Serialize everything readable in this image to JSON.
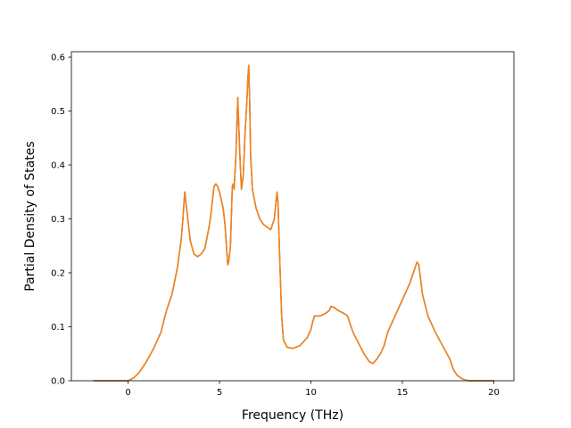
{
  "chart_data": {
    "type": "line",
    "title": "",
    "xlabel": "Frequency (THz)",
    "ylabel": "Partial Density of States",
    "xlim": [
      -3.1,
      21.1
    ],
    "ylim": [
      0.0,
      0.61
    ],
    "xticks": [
      0,
      5,
      10,
      15,
      20
    ],
    "xtick_labels": [
      "0",
      "5",
      "10",
      "15",
      "20"
    ],
    "yticks": [
      0.0,
      0.1,
      0.2,
      0.3,
      0.4,
      0.5,
      0.6
    ],
    "ytick_labels": [
      "0.0",
      "0.1",
      "0.2",
      "0.3",
      "0.4",
      "0.5",
      "0.6"
    ],
    "grid": false,
    "legend": "none",
    "series": [
      {
        "color": "#1f77b4",
        "x": [
          -1.9,
          0.0,
          0.3,
          0.6,
          1.0,
          1.4,
          1.8,
          2.1,
          2.4,
          2.7,
          2.9,
          3.0,
          3.1,
          3.2,
          3.4,
          3.6,
          3.8,
          4.0,
          4.2,
          4.4,
          4.5,
          4.6,
          4.7,
          4.8,
          4.9,
          5.0,
          5.2,
          5.3,
          5.4,
          5.45,
          5.5,
          5.6,
          5.7,
          5.75,
          5.8,
          5.9,
          6.0,
          6.1,
          6.2,
          6.3,
          6.4,
          6.5,
          6.55,
          6.6,
          6.65,
          6.7,
          6.8,
          7.0,
          7.2,
          7.4,
          7.6,
          7.8,
          8.0,
          8.1,
          8.15,
          8.2,
          8.3,
          8.4,
          8.5,
          8.7,
          9.0,
          9.4,
          9.8,
          10.0,
          10.1,
          10.2,
          10.5,
          10.8,
          11.0,
          11.1,
          11.3,
          11.5,
          11.8,
          12.0,
          12.1,
          12.3,
          12.6,
          12.9,
          13.2,
          13.4,
          13.6,
          13.8,
          14.0,
          14.2,
          14.6,
          15.0,
          15.4,
          15.7,
          15.8,
          15.9,
          16.1,
          16.4,
          16.8,
          17.2,
          17.6,
          17.8,
          18.0,
          18.3,
          18.6,
          20.0
        ],
        "y": [
          0.0,
          0.0,
          0.005,
          0.015,
          0.035,
          0.06,
          0.09,
          0.13,
          0.16,
          0.21,
          0.26,
          0.3,
          0.35,
          0.32,
          0.26,
          0.235,
          0.23,
          0.235,
          0.245,
          0.28,
          0.3,
          0.33,
          0.36,
          0.365,
          0.36,
          0.35,
          0.32,
          0.29,
          0.24,
          0.215,
          0.22,
          0.25,
          0.36,
          0.365,
          0.355,
          0.42,
          0.525,
          0.43,
          0.355,
          0.38,
          0.46,
          0.52,
          0.56,
          0.585,
          0.52,
          0.42,
          0.355,
          0.32,
          0.3,
          0.29,
          0.285,
          0.28,
          0.3,
          0.335,
          0.35,
          0.33,
          0.22,
          0.12,
          0.075,
          0.062,
          0.06,
          0.065,
          0.08,
          0.095,
          0.11,
          0.12,
          0.12,
          0.125,
          0.13,
          0.138,
          0.135,
          0.13,
          0.125,
          0.12,
          0.11,
          0.09,
          0.07,
          0.05,
          0.035,
          0.032,
          0.04,
          0.05,
          0.065,
          0.09,
          0.12,
          0.15,
          0.18,
          0.21,
          0.22,
          0.215,
          0.16,
          0.12,
          0.09,
          0.065,
          0.04,
          0.02,
          0.01,
          0.003,
          0.0,
          0.0
        ]
      },
      {
        "color": "#ff7f0e",
        "x": [
          -1.9,
          0.0,
          0.3,
          0.6,
          1.0,
          1.4,
          1.8,
          2.1,
          2.4,
          2.7,
          2.9,
          3.0,
          3.1,
          3.2,
          3.4,
          3.6,
          3.8,
          4.0,
          4.2,
          4.4,
          4.5,
          4.6,
          4.7,
          4.8,
          4.9,
          5.0,
          5.2,
          5.3,
          5.4,
          5.45,
          5.5,
          5.6,
          5.7,
          5.75,
          5.8,
          5.9,
          6.0,
          6.1,
          6.2,
          6.3,
          6.4,
          6.5,
          6.55,
          6.6,
          6.65,
          6.7,
          6.8,
          7.0,
          7.2,
          7.4,
          7.6,
          7.8,
          8.0,
          8.1,
          8.15,
          8.2,
          8.3,
          8.4,
          8.5,
          8.7,
          9.0,
          9.4,
          9.8,
          10.0,
          10.1,
          10.2,
          10.5,
          10.8,
          11.0,
          11.1,
          11.3,
          11.5,
          11.8,
          12.0,
          12.1,
          12.3,
          12.6,
          12.9,
          13.2,
          13.4,
          13.6,
          13.8,
          14.0,
          14.2,
          14.6,
          15.0,
          15.4,
          15.7,
          15.8,
          15.9,
          16.1,
          16.4,
          16.8,
          17.2,
          17.6,
          17.8,
          18.0,
          18.3,
          18.6,
          20.0
        ],
        "y": [
          0.0,
          0.0,
          0.005,
          0.015,
          0.035,
          0.06,
          0.09,
          0.13,
          0.16,
          0.21,
          0.26,
          0.3,
          0.35,
          0.32,
          0.26,
          0.235,
          0.23,
          0.235,
          0.245,
          0.28,
          0.3,
          0.33,
          0.36,
          0.365,
          0.36,
          0.35,
          0.32,
          0.29,
          0.24,
          0.215,
          0.22,
          0.25,
          0.36,
          0.365,
          0.355,
          0.42,
          0.525,
          0.43,
          0.355,
          0.38,
          0.46,
          0.52,
          0.56,
          0.585,
          0.52,
          0.42,
          0.355,
          0.32,
          0.3,
          0.29,
          0.285,
          0.28,
          0.3,
          0.335,
          0.35,
          0.33,
          0.22,
          0.12,
          0.075,
          0.062,
          0.06,
          0.065,
          0.08,
          0.095,
          0.11,
          0.12,
          0.12,
          0.125,
          0.13,
          0.138,
          0.135,
          0.13,
          0.125,
          0.12,
          0.11,
          0.09,
          0.07,
          0.05,
          0.035,
          0.032,
          0.04,
          0.05,
          0.065,
          0.09,
          0.12,
          0.15,
          0.18,
          0.21,
          0.22,
          0.215,
          0.16,
          0.12,
          0.09,
          0.065,
          0.04,
          0.02,
          0.01,
          0.003,
          0.0,
          0.0
        ]
      }
    ]
  }
}
